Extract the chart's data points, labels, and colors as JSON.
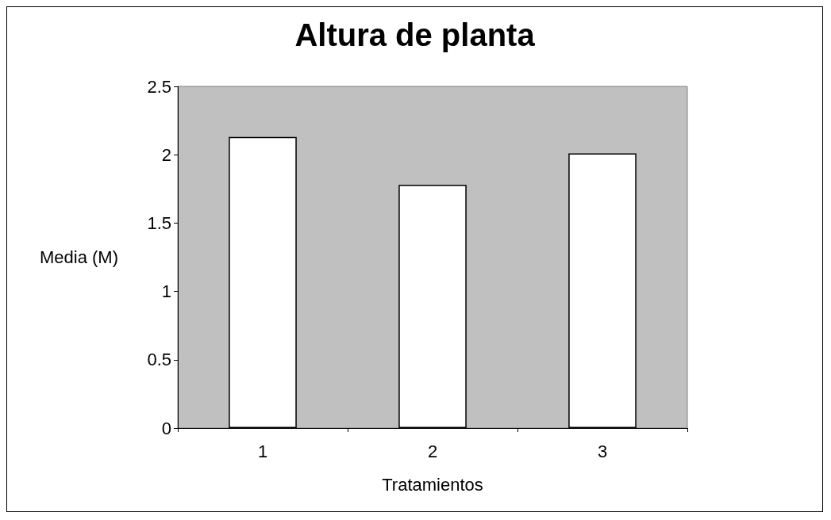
{
  "chart_data": {
    "type": "bar",
    "title": "Altura de planta",
    "xlabel": "Tratamientos",
    "ylabel": "Media (M)",
    "categories": [
      "1",
      "2",
      "3"
    ],
    "values": [
      2.13,
      1.78,
      2.01
    ],
    "color": "#ffffff",
    "ylim": [
      0,
      2.5
    ],
    "yticks": [
      0,
      0.5,
      1,
      1.5,
      2,
      2.5
    ],
    "grid": false
  }
}
